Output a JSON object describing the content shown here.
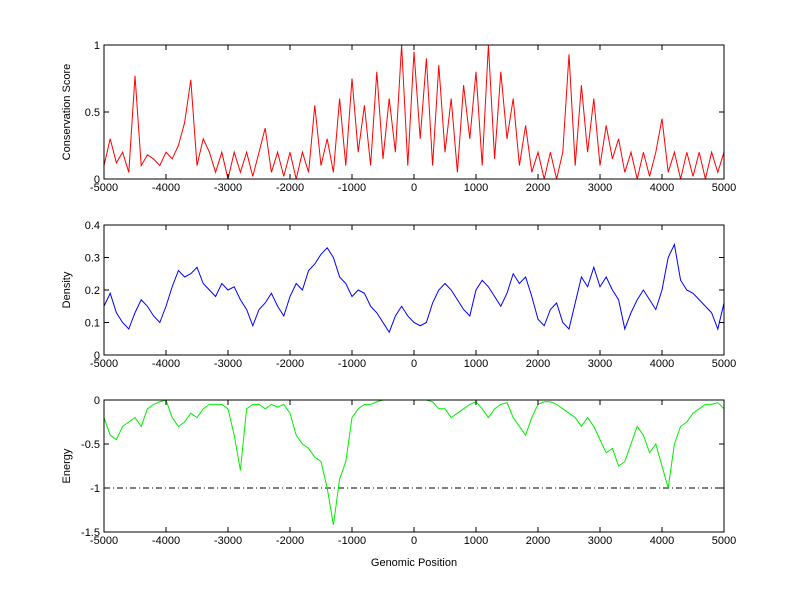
{
  "chart_data": [
    {
      "type": "line",
      "ylabel": "Conservation Score",
      "color": "#ff0000",
      "x": [
        -5000,
        -4900,
        -4800,
        -4700,
        -4600,
        -4500,
        -4400,
        -4300,
        -4200,
        -4100,
        -4000,
        -3900,
        -3800,
        -3700,
        -3600,
        -3500,
        -3400,
        -3300,
        -3200,
        -3100,
        -3000,
        -2900,
        -2800,
        -2700,
        -2600,
        -2500,
        -2400,
        -2300,
        -2200,
        -2100,
        -2000,
        -1900,
        -1800,
        -1700,
        -1600,
        -1500,
        -1400,
        -1300,
        -1200,
        -1100,
        -1000,
        -900,
        -800,
        -700,
        -600,
        -500,
        -400,
        -300,
        -200,
        -100,
        0,
        100,
        200,
        300,
        400,
        500,
        600,
        700,
        800,
        900,
        1000,
        1100,
        1200,
        1300,
        1400,
        1500,
        1600,
        1700,
        1800,
        1900,
        2000,
        2100,
        2200,
        2300,
        2400,
        2500,
        2600,
        2700,
        2800,
        2900,
        3000,
        3100,
        3200,
        3300,
        3400,
        3500,
        3600,
        3700,
        3800,
        3900,
        4000,
        4100,
        4200,
        4300,
        4400,
        4500,
        4600,
        4700,
        4800,
        4900,
        5000
      ],
      "values": [
        0.1,
        0.3,
        0.12,
        0.2,
        0.05,
        0.77,
        0.1,
        0.18,
        0.15,
        0.1,
        0.2,
        0.15,
        0.25,
        0.42,
        0.74,
        0.1,
        0.3,
        0.2,
        0.05,
        0.2,
        0.0,
        0.2,
        0.05,
        0.2,
        0.02,
        0.2,
        0.38,
        0.05,
        0.2,
        0.02,
        0.2,
        0.0,
        0.2,
        0.05,
        0.55,
        0.1,
        0.3,
        0.05,
        0.6,
        0.1,
        0.75,
        0.2,
        0.55,
        0.1,
        0.8,
        0.15,
        0.6,
        0.2,
        1.0,
        0.1,
        0.95,
        0.3,
        0.9,
        0.1,
        0.85,
        0.2,
        0.6,
        0.05,
        0.7,
        0.3,
        0.8,
        0.1,
        1.0,
        0.15,
        0.8,
        0.3,
        0.6,
        0.1,
        0.4,
        0.05,
        0.2,
        0.0,
        0.2,
        0.0,
        0.2,
        0.93,
        0.1,
        0.7,
        0.2,
        0.6,
        0.1,
        0.4,
        0.15,
        0.3,
        0.05,
        0.2,
        0.0,
        0.2,
        0.02,
        0.2,
        0.45,
        0.05,
        0.2,
        0.0,
        0.2,
        0.02,
        0.2,
        0.0,
        0.2,
        0.05,
        0.2
      ],
      "xlim": [
        -5000,
        5000
      ],
      "xticks": [
        -5000,
        -4000,
        -3000,
        -2000,
        -1000,
        0,
        1000,
        2000,
        3000,
        4000,
        5000
      ],
      "ylim": [
        0,
        1
      ],
      "yticks": [
        0,
        0.5,
        1
      ]
    },
    {
      "type": "line",
      "ylabel": "Density",
      "color": "#0000ff",
      "x": [
        -5000,
        -4900,
        -4800,
        -4700,
        -4600,
        -4500,
        -4400,
        -4300,
        -4200,
        -4100,
        -4000,
        -3900,
        -3800,
        -3700,
        -3600,
        -3500,
        -3400,
        -3300,
        -3200,
        -3100,
        -3000,
        -2900,
        -2800,
        -2700,
        -2600,
        -2500,
        -2400,
        -2300,
        -2200,
        -2100,
        -2000,
        -1900,
        -1800,
        -1700,
        -1600,
        -1500,
        -1400,
        -1300,
        -1200,
        -1100,
        -1000,
        -900,
        -800,
        -700,
        -600,
        -500,
        -400,
        -300,
        -200,
        -100,
        0,
        100,
        200,
        300,
        400,
        500,
        600,
        700,
        800,
        900,
        1000,
        1100,
        1200,
        1300,
        1400,
        1500,
        1600,
        1700,
        1800,
        1900,
        2000,
        2100,
        2200,
        2300,
        2400,
        2500,
        2600,
        2700,
        2800,
        2900,
        3000,
        3100,
        3200,
        3300,
        3400,
        3500,
        3600,
        3700,
        3800,
        3900,
        4000,
        4100,
        4200,
        4300,
        4400,
        4500,
        4600,
        4700,
        4800,
        4900,
        5000
      ],
      "values": [
        0.15,
        0.19,
        0.13,
        0.1,
        0.08,
        0.13,
        0.17,
        0.15,
        0.12,
        0.1,
        0.15,
        0.21,
        0.26,
        0.24,
        0.25,
        0.27,
        0.22,
        0.2,
        0.18,
        0.22,
        0.2,
        0.21,
        0.17,
        0.14,
        0.09,
        0.14,
        0.16,
        0.19,
        0.15,
        0.12,
        0.18,
        0.22,
        0.2,
        0.26,
        0.28,
        0.31,
        0.33,
        0.3,
        0.24,
        0.22,
        0.18,
        0.2,
        0.19,
        0.15,
        0.13,
        0.1,
        0.07,
        0.12,
        0.15,
        0.12,
        0.1,
        0.09,
        0.1,
        0.16,
        0.2,
        0.22,
        0.2,
        0.17,
        0.14,
        0.12,
        0.2,
        0.23,
        0.21,
        0.18,
        0.15,
        0.19,
        0.25,
        0.22,
        0.24,
        0.18,
        0.11,
        0.09,
        0.14,
        0.16,
        0.1,
        0.08,
        0.16,
        0.24,
        0.21,
        0.27,
        0.21,
        0.24,
        0.2,
        0.17,
        0.08,
        0.13,
        0.17,
        0.2,
        0.17,
        0.14,
        0.2,
        0.3,
        0.34,
        0.23,
        0.2,
        0.19,
        0.17,
        0.15,
        0.13,
        0.08,
        0.16
      ],
      "xlim": [
        -5000,
        5000
      ],
      "xticks": [
        -5000,
        -4000,
        -3000,
        -2000,
        -1000,
        0,
        1000,
        2000,
        3000,
        4000,
        5000
      ],
      "ylim": [
        0,
        0.4
      ],
      "yticks": [
        0,
        0.1,
        0.2,
        0.3,
        0.4
      ]
    },
    {
      "type": "line",
      "ylabel": "Energy",
      "xlabel": "Genomic Position",
      "color": "#00ee00",
      "x": [
        -5000,
        -4900,
        -4800,
        -4700,
        -4600,
        -4500,
        -4400,
        -4300,
        -4200,
        -4100,
        -4000,
        -3900,
        -3800,
        -3700,
        -3600,
        -3500,
        -3400,
        -3300,
        -3200,
        -3100,
        -3000,
        -2900,
        -2800,
        -2700,
        -2600,
        -2500,
        -2400,
        -2300,
        -2200,
        -2100,
        -2000,
        -1900,
        -1800,
        -1700,
        -1600,
        -1500,
        -1400,
        -1300,
        -1200,
        -1100,
        -1000,
        -900,
        -800,
        -700,
        -600,
        -500,
        -400,
        -300,
        -200,
        -100,
        0,
        100,
        200,
        300,
        400,
        500,
        600,
        700,
        800,
        900,
        1000,
        1100,
        1200,
        1300,
        1400,
        1500,
        1600,
        1700,
        1800,
        1900,
        2000,
        2100,
        2200,
        2300,
        2400,
        2500,
        2600,
        2700,
        2800,
        2900,
        3000,
        3100,
        3200,
        3300,
        3400,
        3500,
        3600,
        3700,
        3800,
        3900,
        4000,
        4100,
        4200,
        4300,
        4400,
        4500,
        4600,
        4700,
        4800,
        4900,
        5000
      ],
      "values": [
        -0.2,
        -0.4,
        -0.45,
        -0.3,
        -0.25,
        -0.2,
        -0.3,
        -0.1,
        -0.05,
        -0.02,
        0,
        -0.2,
        -0.3,
        -0.25,
        -0.15,
        -0.2,
        -0.1,
        -0.05,
        -0.05,
        -0.05,
        -0.1,
        -0.4,
        -0.8,
        -0.1,
        -0.05,
        -0.05,
        -0.1,
        -0.05,
        -0.08,
        -0.05,
        -0.15,
        -0.4,
        -0.5,
        -0.55,
        -0.65,
        -0.7,
        -1.0,
        -1.42,
        -0.9,
        -0.7,
        -0.2,
        -0.1,
        -0.05,
        -0.05,
        -0.02,
        0,
        0,
        0,
        0,
        0,
        0,
        0,
        0,
        -0.02,
        -0.1,
        -0.1,
        -0.2,
        -0.15,
        -0.1,
        -0.05,
        -0.02,
        -0.1,
        -0.2,
        -0.1,
        -0.05,
        -0.03,
        -0.2,
        -0.3,
        -0.4,
        -0.2,
        -0.05,
        -0.02,
        -0.02,
        -0.05,
        -0.1,
        -0.15,
        -0.2,
        -0.3,
        -0.2,
        -0.3,
        -0.45,
        -0.6,
        -0.55,
        -0.75,
        -0.7,
        -0.5,
        -0.3,
        -0.4,
        -0.6,
        -0.5,
        -0.75,
        -1.0,
        -0.5,
        -0.3,
        -0.25,
        -0.15,
        -0.1,
        -0.05,
        -0.05,
        -0.03,
        -0.1
      ],
      "hline": -1,
      "xlim": [
        -5000,
        5000
      ],
      "xticks": [
        -5000,
        -4000,
        -3000,
        -2000,
        -1000,
        0,
        1000,
        2000,
        3000,
        4000,
        5000
      ],
      "ylim": [
        -1.5,
        0
      ],
      "yticks": [
        -1.5,
        -1,
        -0.5,
        0
      ]
    }
  ]
}
